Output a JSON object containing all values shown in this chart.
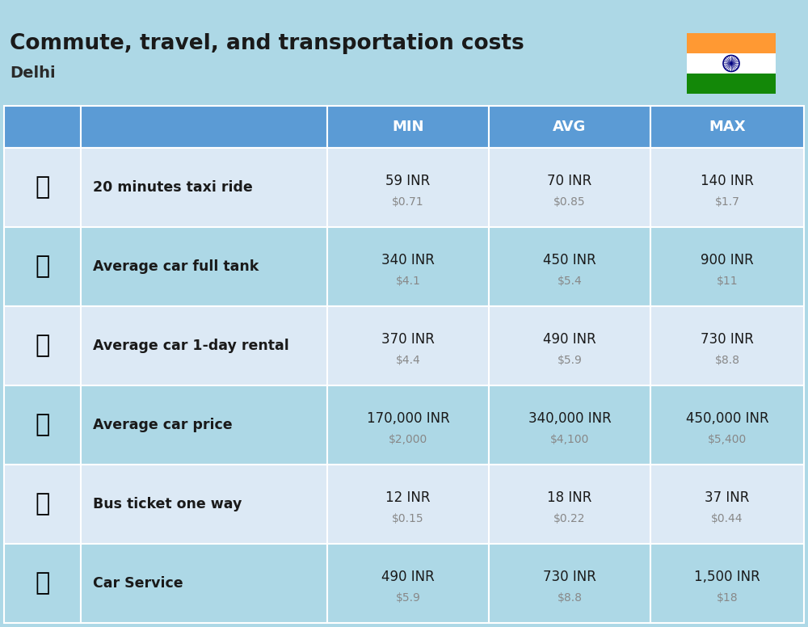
{
  "title": "Commute, travel, and transportation costs",
  "subtitle": "Delhi",
  "bg_color": "#add8e6",
  "header_bg": "#5b9bd5",
  "header_text_color": "#ffffff",
  "row_bg_light": "#c5dcf0",
  "row_bg_dark": "#b8d0e8",
  "cell_bg": "#dce9f5",
  "separator_color": "#ffffff",
  "col_header_labels": [
    "MIN",
    "AVG",
    "MAX"
  ],
  "rows": [
    {
      "label": "20 minutes taxi ride",
      "emoji": "🚖",
      "min_inr": "59 INR",
      "min_usd": "$0.71",
      "avg_inr": "70 INR",
      "avg_usd": "$0.85",
      "max_inr": "140 INR",
      "max_usd": "$1.7"
    },
    {
      "label": "Average car full tank",
      "emoji": "⛽",
      "min_inr": "340 INR",
      "min_usd": "$4.1",
      "avg_inr": "450 INR",
      "avg_usd": "$5.4",
      "max_inr": "900 INR",
      "max_usd": "$11"
    },
    {
      "label": "Average car 1-day rental",
      "emoji": "🚗",
      "min_inr": "370 INR",
      "min_usd": "$4.4",
      "avg_inr": "490 INR",
      "avg_usd": "$5.9",
      "max_inr": "730 INR",
      "max_usd": "$8.8"
    },
    {
      "label": "Average car price",
      "emoji": "🚗",
      "min_inr": "170,000 INR",
      "min_usd": "$2,000",
      "avg_inr": "340,000 INR",
      "avg_usd": "$4,100",
      "max_inr": "450,000 INR",
      "max_usd": "$5,400"
    },
    {
      "label": "Bus ticket one way",
      "emoji": "🚌",
      "min_inr": "12 INR",
      "min_usd": "$0.15",
      "avg_inr": "18 INR",
      "avg_usd": "$0.22",
      "max_inr": "37 INR",
      "max_usd": "$0.44"
    },
    {
      "label": "Car Service",
      "emoji": "🚗",
      "min_inr": "490 INR",
      "min_usd": "$5.9",
      "avg_inr": "730 INR",
      "avg_usd": "$8.8",
      "max_inr": "1,500 INR",
      "max_usd": "$18"
    }
  ],
  "icon_images": [
    "taxi",
    "gas_station",
    "car_rental",
    "car_price",
    "bus",
    "car_service"
  ]
}
